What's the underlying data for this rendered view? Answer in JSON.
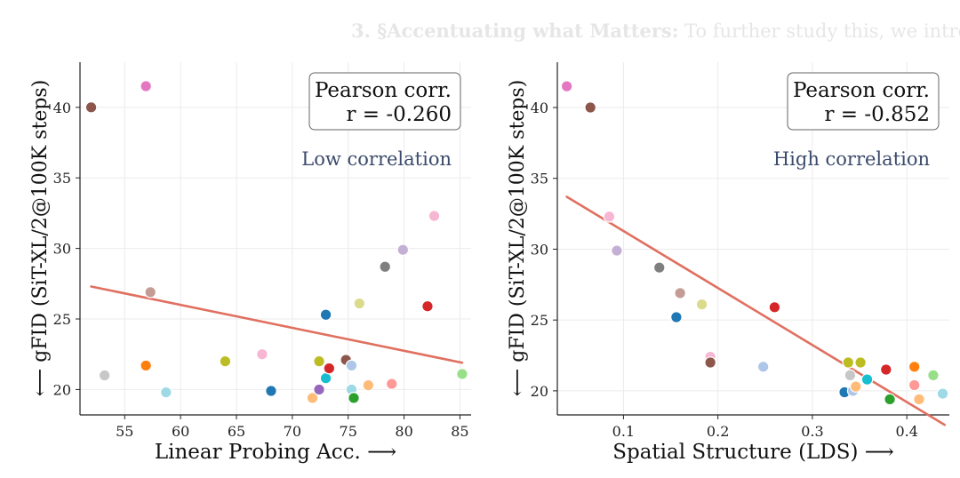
{
  "background_text": {
    "bold": "3. §Accentuating what Matters:",
    "rest": " To further study this, we introd"
  },
  "chart_data": [
    {
      "type": "scatter",
      "xlabel": "Linear Probing Acc. ⟶",
      "ylabel": "⟵  gFID (SiT-XL/2@100K steps)",
      "xlim": [
        51,
        86
      ],
      "ylim": [
        18.2,
        43.2
      ],
      "xticks": [
        55,
        60,
        65,
        70,
        75,
        80,
        85
      ],
      "yticks": [
        20,
        25,
        30,
        35,
        40
      ],
      "tick_labels_x": [
        "55",
        "60",
        "65",
        "70",
        "75",
        "80",
        "85"
      ],
      "tick_labels_y": [
        "20",
        "25",
        "30",
        "35",
        "40"
      ],
      "grid": true,
      "annotation_box": [
        "Pearson corr.",
        "r = -0.260"
      ],
      "annotation_text": "Low correlation",
      "annotation_color": "#3b4a6b",
      "fit_line": {
        "x": [
          52,
          85.2
        ],
        "y": [
          27.3,
          21.9
        ],
        "color": "#e07060"
      },
      "points": [
        {
          "x": 52.0,
          "y": 40.0,
          "color": "#8c564b"
        },
        {
          "x": 56.9,
          "y": 41.5,
          "color": "#e377c2"
        },
        {
          "x": 53.2,
          "y": 21.0,
          "color": "#c7c7c7"
        },
        {
          "x": 57.3,
          "y": 26.9,
          "color": "#c49c94"
        },
        {
          "x": 56.9,
          "y": 21.7,
          "color": "#ff7f0e"
        },
        {
          "x": 58.7,
          "y": 19.8,
          "color": "#9edae5"
        },
        {
          "x": 64.0,
          "y": 22.0,
          "color": "#bcbd22"
        },
        {
          "x": 67.3,
          "y": 22.5,
          "color": "#f7b6d2"
        },
        {
          "x": 68.1,
          "y": 19.9,
          "color": "#1f77b4"
        },
        {
          "x": 71.8,
          "y": 19.4,
          "color": "#ffbb78"
        },
        {
          "x": 72.4,
          "y": 20.0,
          "color": "#9467bd"
        },
        {
          "x": 72.4,
          "y": 22.0,
          "color": "#bcbd22"
        },
        {
          "x": 73.0,
          "y": 25.3,
          "color": "#1f77b4"
        },
        {
          "x": 73.0,
          "y": 20.8,
          "color": "#17becf"
        },
        {
          "x": 73.3,
          "y": 21.5,
          "color": "#d62728"
        },
        {
          "x": 74.8,
          "y": 22.1,
          "color": "#8c564b"
        },
        {
          "x": 75.3,
          "y": 21.7,
          "color": "#aec7e8"
        },
        {
          "x": 75.3,
          "y": 20.0,
          "color": "#9edae5"
        },
        {
          "x": 75.5,
          "y": 19.4,
          "color": "#2ca02c"
        },
        {
          "x": 76.0,
          "y": 26.1,
          "color": "#dbdb8d"
        },
        {
          "x": 76.8,
          "y": 20.3,
          "color": "#ffbb78"
        },
        {
          "x": 78.3,
          "y": 28.7,
          "color": "#7f7f7f"
        },
        {
          "x": 78.9,
          "y": 20.4,
          "color": "#ff9896"
        },
        {
          "x": 79.9,
          "y": 29.9,
          "color": "#c5b0d5"
        },
        {
          "x": 82.1,
          "y": 25.9,
          "color": "#d62728"
        },
        {
          "x": 82.7,
          "y": 32.3,
          "color": "#f7b6d2"
        },
        {
          "x": 85.2,
          "y": 21.1,
          "color": "#98df8a"
        }
      ]
    },
    {
      "type": "scatter",
      "xlabel": "Spatial Structure (LDS) ⟶",
      "ylabel": "⟵  gFID (SiT-XL/2@100K steps)",
      "xlim": [
        0.03,
        0.445
      ],
      "ylim": [
        18.3,
        43.2
      ],
      "xticks": [
        0.1,
        0.2,
        0.3,
        0.4
      ],
      "yticks": [
        20,
        25,
        30,
        35,
        40
      ],
      "tick_labels_x": [
        "0.1",
        "0.2",
        "0.3",
        "0.4"
      ],
      "tick_labels_y": [
        "20",
        "25",
        "30",
        "35",
        "40"
      ],
      "grid": true,
      "annotation_box": [
        "Pearson corr.",
        "r = -0.852"
      ],
      "annotation_text": "High correlation",
      "annotation_color": "#3b4a6b",
      "fit_line": {
        "x": [
          0.04,
          0.44
        ],
        "y": [
          33.7,
          17.6
        ],
        "color": "#e07060"
      },
      "points": [
        {
          "x": 0.04,
          "y": 41.5,
          "color": "#e377c2"
        },
        {
          "x": 0.065,
          "y": 40.0,
          "color": "#8c564b"
        },
        {
          "x": 0.085,
          "y": 32.3,
          "color": "#f7b6d2"
        },
        {
          "x": 0.093,
          "y": 29.9,
          "color": "#c5b0d5"
        },
        {
          "x": 0.138,
          "y": 28.7,
          "color": "#7f7f7f"
        },
        {
          "x": 0.16,
          "y": 26.9,
          "color": "#c49c94"
        },
        {
          "x": 0.156,
          "y": 25.2,
          "color": "#1f77b4"
        },
        {
          "x": 0.183,
          "y": 26.1,
          "color": "#dbdb8d"
        },
        {
          "x": 0.192,
          "y": 22.4,
          "color": "#f7b6d2"
        },
        {
          "x": 0.192,
          "y": 22.0,
          "color": "#8c564b"
        },
        {
          "x": 0.248,
          "y": 21.7,
          "color": "#aec7e8"
        },
        {
          "x": 0.26,
          "y": 25.9,
          "color": "#d62728"
        },
        {
          "x": 0.334,
          "y": 19.9,
          "color": "#1f77b4"
        },
        {
          "x": 0.338,
          "y": 22.0,
          "color": "#bcbd22"
        },
        {
          "x": 0.34,
          "y": 21.1,
          "color": "#c7c7c7"
        },
        {
          "x": 0.343,
          "y": 20.0,
          "color": "#aec7e8"
        },
        {
          "x": 0.346,
          "y": 20.3,
          "color": "#ffbb78"
        },
        {
          "x": 0.351,
          "y": 22.0,
          "color": "#bcbd22"
        },
        {
          "x": 0.358,
          "y": 20.8,
          "color": "#17becf"
        },
        {
          "x": 0.378,
          "y": 21.5,
          "color": "#d62728"
        },
        {
          "x": 0.382,
          "y": 19.4,
          "color": "#2ca02c"
        },
        {
          "x": 0.408,
          "y": 21.7,
          "color": "#ff7f0e"
        },
        {
          "x": 0.408,
          "y": 20.4,
          "color": "#ff9896"
        },
        {
          "x": 0.413,
          "y": 19.4,
          "color": "#ffbb78"
        },
        {
          "x": 0.428,
          "y": 21.1,
          "color": "#98df8a"
        },
        {
          "x": 0.438,
          "y": 19.8,
          "color": "#9edae5"
        }
      ]
    }
  ]
}
